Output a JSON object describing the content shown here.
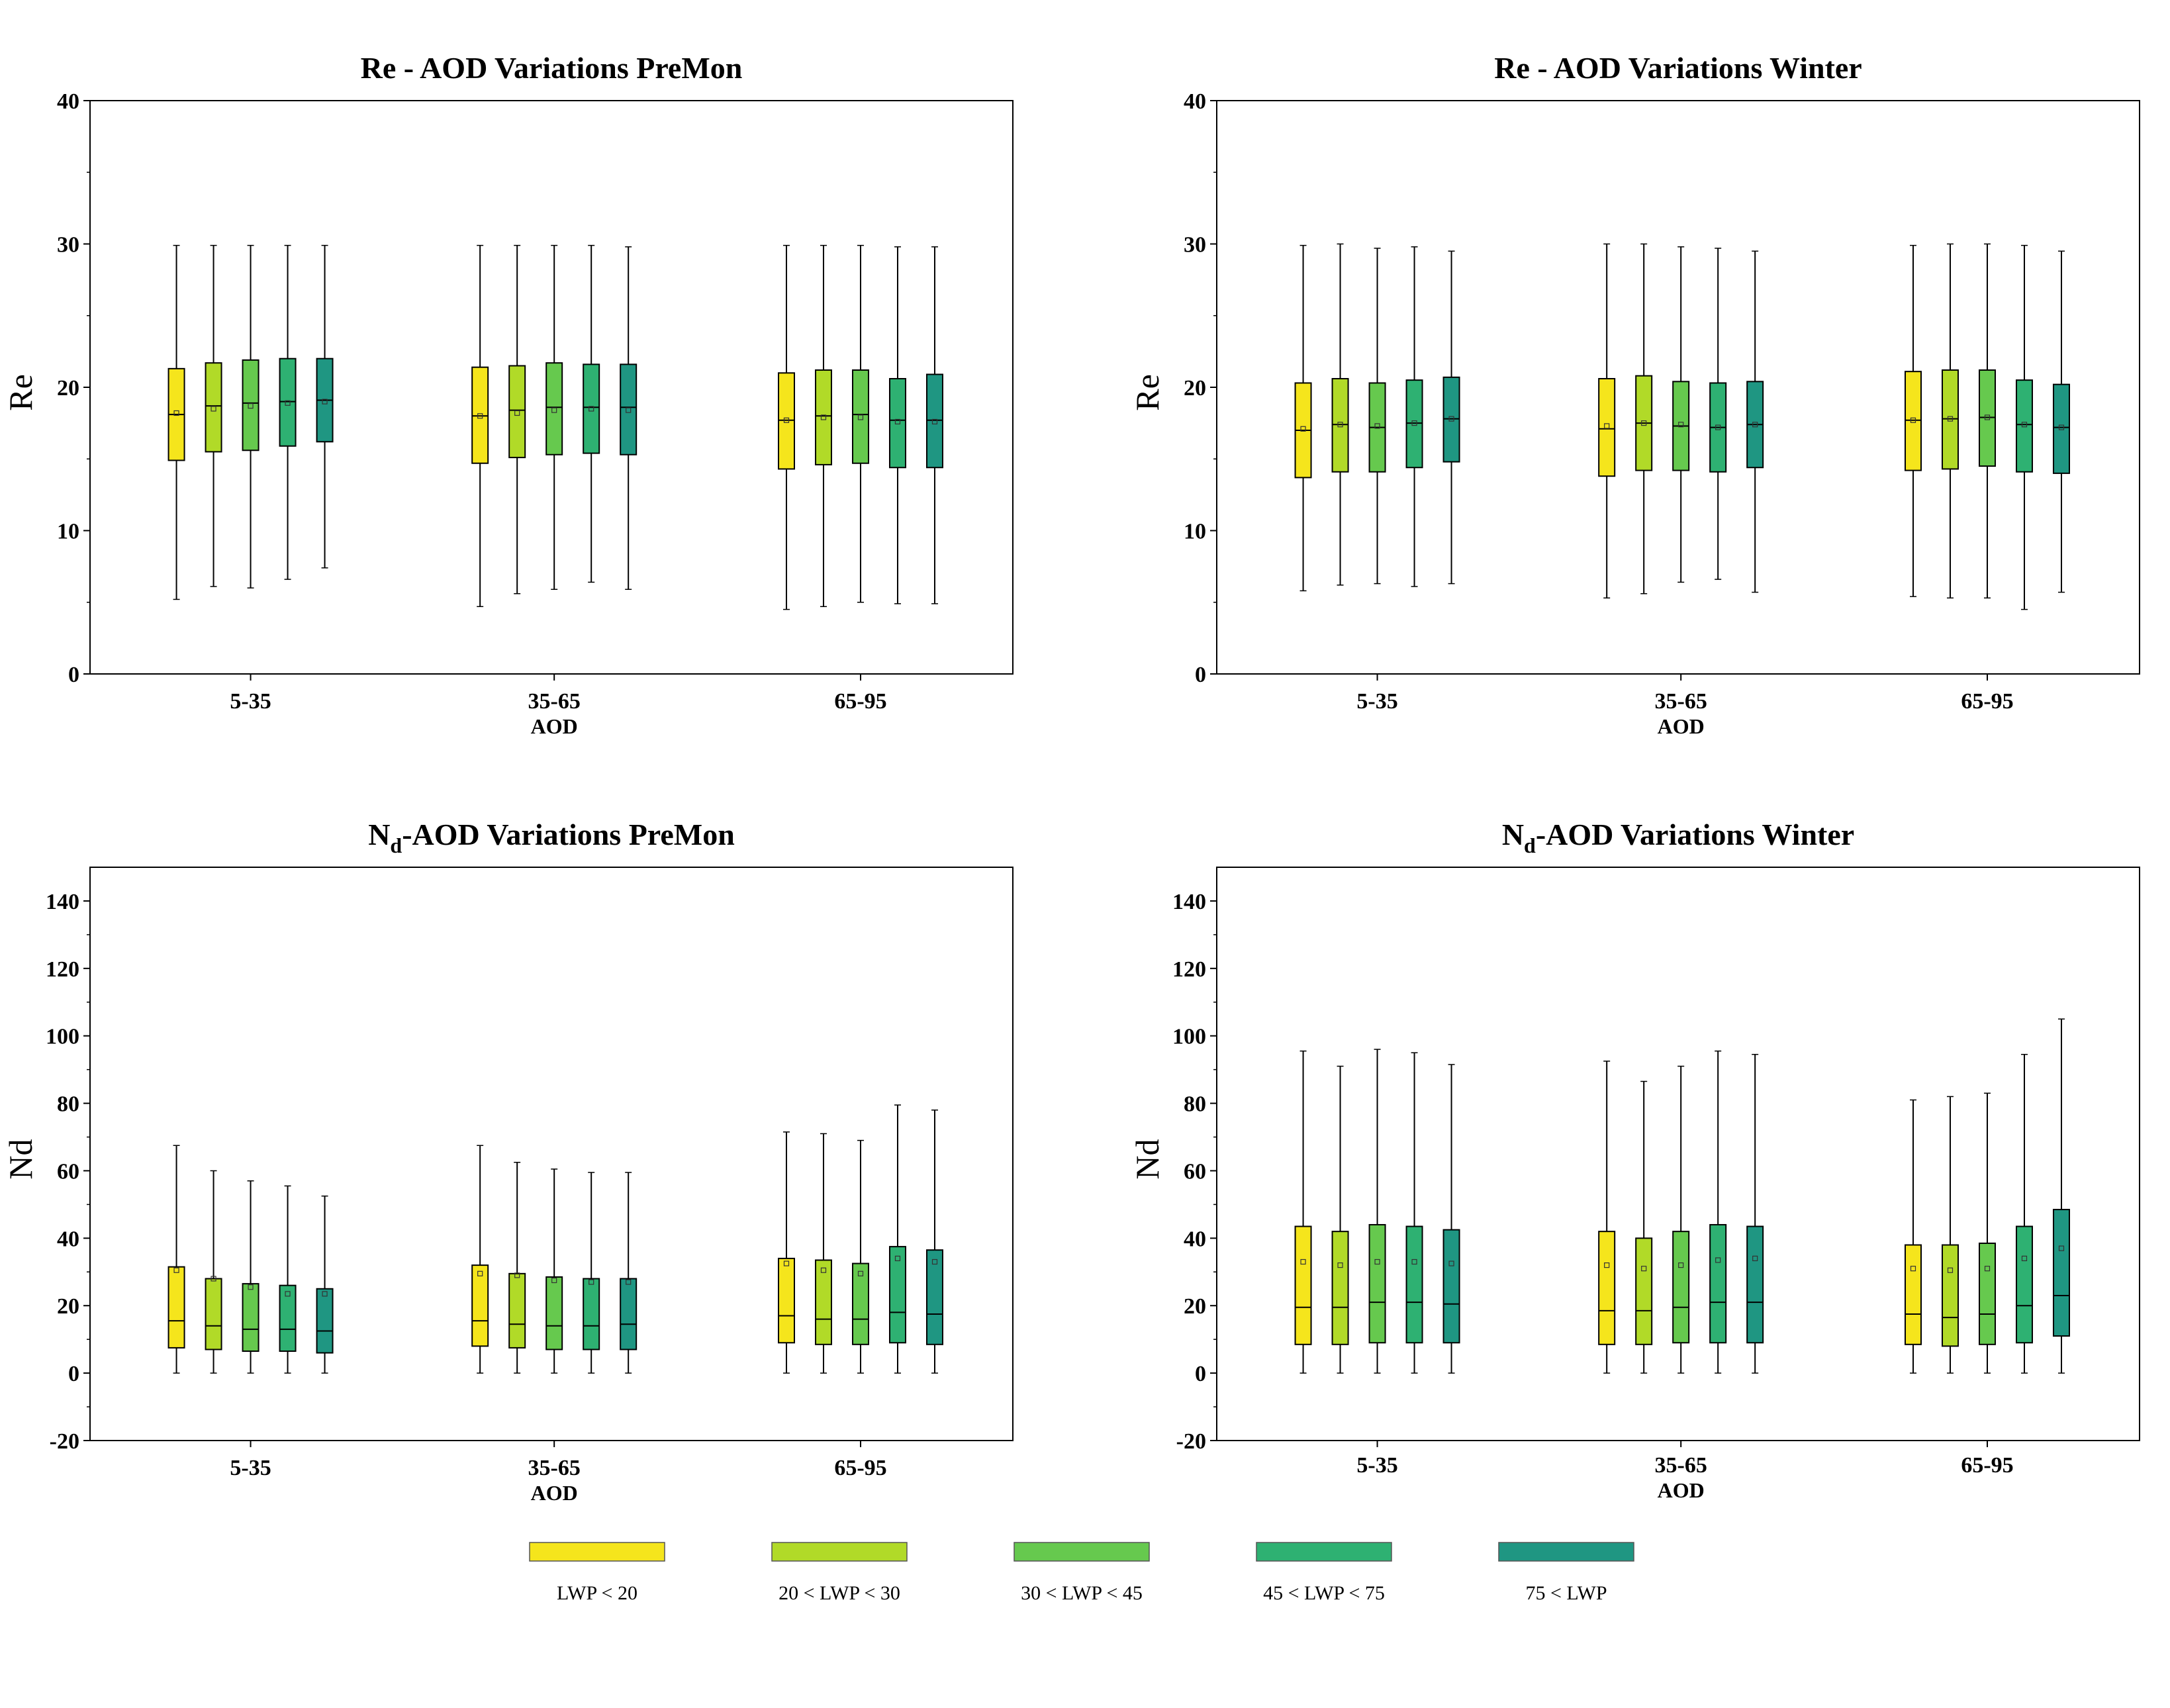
{
  "legend": {
    "entries": [
      "LWP < 20",
      "20 < LWP < 30",
      "30 < LWP < 45",
      "45 < LWP < 75",
      "75 < LWP"
    ],
    "colors": [
      "#F5E51C",
      "#B1DA28",
      "#66C94E",
      "#2EB172",
      "#1F9682"
    ]
  },
  "chart_data": [
    {
      "type": "box",
      "title": "Re - AOD Variations PreMon",
      "title_main": "Re - AOD Variations PreMon",
      "title_sub": "",
      "title_rest": "",
      "ylabel": "Re",
      "xlabel": "AOD",
      "ylim": [
        0,
        40
      ],
      "yticks": [
        "0",
        "10",
        "20",
        "30",
        "40"
      ],
      "categories": [
        "5-35",
        "35-65",
        "65-95"
      ],
      "series": [
        {
          "name": "LWP < 20",
          "boxes": [
            {
              "whislo": 5.2,
              "q1": 14.9,
              "med": 18.1,
              "q3": 21.3,
              "whishi": 29.9,
              "mean": 18.2
            },
            {
              "whislo": 4.7,
              "q1": 14.7,
              "med": 18.0,
              "q3": 21.4,
              "whishi": 29.9,
              "mean": 18.0
            },
            {
              "whislo": 4.5,
              "q1": 14.3,
              "med": 17.7,
              "q3": 21.0,
              "whishi": 29.9,
              "mean": 17.7
            }
          ]
        },
        {
          "name": "20 < LWP < 30",
          "boxes": [
            {
              "whislo": 6.1,
              "q1": 15.5,
              "med": 18.7,
              "q3": 21.7,
              "whishi": 29.9,
              "mean": 18.5
            },
            {
              "whislo": 5.6,
              "q1": 15.1,
              "med": 18.4,
              "q3": 21.5,
              "whishi": 29.9,
              "mean": 18.2
            },
            {
              "whislo": 4.7,
              "q1": 14.6,
              "med": 18.0,
              "q3": 21.2,
              "whishi": 29.9,
              "mean": 17.9
            }
          ]
        },
        {
          "name": "30 < LWP < 45",
          "boxes": [
            {
              "whislo": 6.0,
              "q1": 15.6,
              "med": 18.9,
              "q3": 21.9,
              "whishi": 29.9,
              "mean": 18.7
            },
            {
              "whislo": 5.9,
              "q1": 15.3,
              "med": 18.6,
              "q3": 21.7,
              "whishi": 29.9,
              "mean": 18.4
            },
            {
              "whislo": 5.0,
              "q1": 14.7,
              "med": 18.1,
              "q3": 21.2,
              "whishi": 29.9,
              "mean": 17.9
            }
          ]
        },
        {
          "name": "45 < LWP < 75",
          "boxes": [
            {
              "whislo": 6.6,
              "q1": 15.9,
              "med": 19.0,
              "q3": 22.0,
              "whishi": 29.9,
              "mean": 18.9
            },
            {
              "whislo": 6.4,
              "q1": 15.4,
              "med": 18.6,
              "q3": 21.6,
              "whishi": 29.9,
              "mean": 18.5
            },
            {
              "whislo": 4.9,
              "q1": 14.4,
              "med": 17.7,
              "q3": 20.6,
              "whishi": 29.8,
              "mean": 17.6
            }
          ]
        },
        {
          "name": "75 < LWP",
          "boxes": [
            {
              "whislo": 7.4,
              "q1": 16.2,
              "med": 19.1,
              "q3": 22.0,
              "whishi": 29.9,
              "mean": 19.0
            },
            {
              "whislo": 5.9,
              "q1": 15.3,
              "med": 18.6,
              "q3": 21.6,
              "whishi": 29.8,
              "mean": 18.4
            },
            {
              "whislo": 4.9,
              "q1": 14.4,
              "med": 17.7,
              "q3": 20.9,
              "whishi": 29.8,
              "mean": 17.6
            }
          ]
        }
      ]
    },
    {
      "type": "box",
      "title": "Re - AOD Variations Winter",
      "title_main": "Re - AOD Variations Winter",
      "title_sub": "",
      "title_rest": "",
      "ylabel": "Re",
      "xlabel": "AOD",
      "ylim": [
        0,
        40
      ],
      "yticks": [
        "0",
        "10",
        "20",
        "30",
        "40"
      ],
      "categories": [
        "5-35",
        "35-65",
        "65-95"
      ],
      "series": [
        {
          "name": "LWP < 20",
          "boxes": [
            {
              "whislo": 5.8,
              "q1": 13.7,
              "med": 17.0,
              "q3": 20.3,
              "whishi": 29.9,
              "mean": 17.1
            },
            {
              "whislo": 5.3,
              "q1": 13.8,
              "med": 17.1,
              "q3": 20.6,
              "whishi": 30.0,
              "mean": 17.3
            },
            {
              "whislo": 5.4,
              "q1": 14.2,
              "med": 17.7,
              "q3": 21.1,
              "whishi": 29.9,
              "mean": 17.7
            }
          ]
        },
        {
          "name": "20 < LWP < 30",
          "boxes": [
            {
              "whislo": 6.2,
              "q1": 14.1,
              "med": 17.4,
              "q3": 20.6,
              "whishi": 30.0,
              "mean": 17.4
            },
            {
              "whislo": 5.6,
              "q1": 14.2,
              "med": 17.5,
              "q3": 20.8,
              "whishi": 30.0,
              "mean": 17.5
            },
            {
              "whislo": 5.3,
              "q1": 14.3,
              "med": 17.8,
              "q3": 21.2,
              "whishi": 30.0,
              "mean": 17.8
            }
          ]
        },
        {
          "name": "30 < LWP < 45",
          "boxes": [
            {
              "whislo": 6.3,
              "q1": 14.1,
              "med": 17.2,
              "q3": 20.3,
              "whishi": 29.7,
              "mean": 17.3
            },
            {
              "whislo": 6.4,
              "q1": 14.2,
              "med": 17.3,
              "q3": 20.4,
              "whishi": 29.8,
              "mean": 17.4
            },
            {
              "whislo": 5.3,
              "q1": 14.5,
              "med": 17.9,
              "q3": 21.2,
              "whishi": 30.0,
              "mean": 17.9
            }
          ]
        },
        {
          "name": "45 < LWP < 75",
          "boxes": [
            {
              "whislo": 6.1,
              "q1": 14.4,
              "med": 17.5,
              "q3": 20.5,
              "whishi": 29.8,
              "mean": 17.5
            },
            {
              "whislo": 6.6,
              "q1": 14.1,
              "med": 17.2,
              "q3": 20.3,
              "whishi": 29.7,
              "mean": 17.2
            },
            {
              "whislo": 4.5,
              "q1": 14.1,
              "med": 17.4,
              "q3": 20.5,
              "whishi": 29.9,
              "mean": 17.4
            }
          ]
        },
        {
          "name": "75 < LWP",
          "boxes": [
            {
              "whislo": 6.3,
              "q1": 14.8,
              "med": 17.8,
              "q3": 20.7,
              "whishi": 29.5,
              "mean": 17.8
            },
            {
              "whislo": 5.7,
              "q1": 14.4,
              "med": 17.4,
              "q3": 20.4,
              "whishi": 29.5,
              "mean": 17.4
            },
            {
              "whislo": 5.7,
              "q1": 14.0,
              "med": 17.2,
              "q3": 20.2,
              "whishi": 29.5,
              "mean": 17.2
            }
          ]
        }
      ]
    },
    {
      "type": "box",
      "title": "Nd-AOD Variations PreMon",
      "title_main": "N",
      "title_sub": "d",
      "title_rest": "-AOD Variations PreMon",
      "ylabel": "Nd",
      "xlabel": "AOD",
      "ylim": [
        -20,
        150
      ],
      "yticks": [
        "-20",
        "0",
        "20",
        "40",
        "60",
        "80",
        "100",
        "120",
        "140"
      ],
      "categories": [
        "5-35",
        "35-65",
        "65-95"
      ],
      "series": [
        {
          "name": "LWP < 20",
          "boxes": [
            {
              "whislo": 0,
              "q1": 7.5,
              "med": 15.5,
              "q3": 31.5,
              "whishi": 67.5,
              "mean": 30.5
            },
            {
              "whislo": 0,
              "q1": 8,
              "med": 15.5,
              "q3": 32,
              "whishi": 67.5,
              "mean": 29.5
            },
            {
              "whislo": 0,
              "q1": 9,
              "med": 17,
              "q3": 34,
              "whishi": 71.5,
              "mean": 32.5
            }
          ]
        },
        {
          "name": "20 < LWP < 30",
          "boxes": [
            {
              "whislo": 0,
              "q1": 7,
              "med": 14,
              "q3": 28,
              "whishi": 60,
              "mean": 28
            },
            {
              "whislo": 0,
              "q1": 7.5,
              "med": 14.5,
              "q3": 29.5,
              "whishi": 62.5,
              "mean": 29
            },
            {
              "whislo": 0,
              "q1": 8.5,
              "med": 16,
              "q3": 33.5,
              "whishi": 71,
              "mean": 30.5
            }
          ]
        },
        {
          "name": "30 < LWP < 45",
          "boxes": [
            {
              "whislo": 0,
              "q1": 6.5,
              "med": 13,
              "q3": 26.5,
              "whishi": 57,
              "mean": 25.5
            },
            {
              "whislo": 0,
              "q1": 7,
              "med": 14,
              "q3": 28.5,
              "whishi": 60.5,
              "mean": 27.5
            },
            {
              "whislo": 0,
              "q1": 8.5,
              "med": 16,
              "q3": 32.5,
              "whishi": 69,
              "mean": 29.5
            }
          ]
        },
        {
          "name": "45 < LWP < 75",
          "boxes": [
            {
              "whislo": 0,
              "q1": 6.5,
              "med": 13,
              "q3": 26,
              "whishi": 55.5,
              "mean": 23.5
            },
            {
              "whislo": 0,
              "q1": 7,
              "med": 14,
              "q3": 28,
              "whishi": 59.5,
              "mean": 27
            },
            {
              "whislo": 0,
              "q1": 9,
              "med": 18,
              "q3": 37.5,
              "whishi": 79.5,
              "mean": 34
            }
          ]
        },
        {
          "name": "75 < LWP",
          "boxes": [
            {
              "whislo": 0,
              "q1": 6,
              "med": 12.5,
              "q3": 25,
              "whishi": 52.5,
              "mean": 23.5
            },
            {
              "whislo": 0,
              "q1": 7,
              "med": 14.5,
              "q3": 28,
              "whishi": 59.5,
              "mean": 27
            },
            {
              "whislo": 0,
              "q1": 8.5,
              "med": 17.5,
              "q3": 36.5,
              "whishi": 78,
              "mean": 33
            }
          ]
        }
      ]
    },
    {
      "type": "box",
      "title": "Nd-AOD Variations Winter",
      "title_main": "N",
      "title_sub": "d",
      "title_rest": "-AOD Variations Winter",
      "ylabel": "Nd",
      "xlabel": "AOD",
      "ylim": [
        -20,
        150
      ],
      "yticks": [
        "-20",
        "0",
        "20",
        "40",
        "60",
        "80",
        "100",
        "120",
        "140"
      ],
      "categories": [
        "5-35",
        "35-65",
        "65-95"
      ],
      "series": [
        {
          "name": "LWP < 20",
          "boxes": [
            {
              "whislo": 0,
              "q1": 8.5,
              "med": 19.5,
              "q3": 43.5,
              "whishi": 95.5,
              "mean": 33
            },
            {
              "whislo": 0,
              "q1": 8.5,
              "med": 18.5,
              "q3": 42,
              "whishi": 92.5,
              "mean": 32
            },
            {
              "whislo": 0,
              "q1": 8.5,
              "med": 17.5,
              "q3": 38,
              "whishi": 81,
              "mean": 31
            }
          ]
        },
        {
          "name": "20 < LWP < 30",
          "boxes": [
            {
              "whislo": 0,
              "q1": 8.5,
              "med": 19.5,
              "q3": 42,
              "whishi": 91,
              "mean": 32
            },
            {
              "whislo": 0,
              "q1": 8.5,
              "med": 18.5,
              "q3": 40,
              "whishi": 86.5,
              "mean": 31
            },
            {
              "whislo": 0,
              "q1": 8,
              "med": 16.5,
              "q3": 38,
              "whishi": 82,
              "mean": 30.5
            }
          ]
        },
        {
          "name": "30 < LWP < 45",
          "boxes": [
            {
              "whislo": 0,
              "q1": 9,
              "med": 21,
              "q3": 44,
              "whishi": 96,
              "mean": 33
            },
            {
              "whislo": 0,
              "q1": 9,
              "med": 19.5,
              "q3": 42,
              "whishi": 91,
              "mean": 32
            },
            {
              "whislo": 0,
              "q1": 8.5,
              "med": 17.5,
              "q3": 38.5,
              "whishi": 83,
              "mean": 31
            }
          ]
        },
        {
          "name": "45 < LWP < 75",
          "boxes": [
            {
              "whislo": 0,
              "q1": 9,
              "med": 21,
              "q3": 43.5,
              "whishi": 95,
              "mean": 33
            },
            {
              "whislo": 0,
              "q1": 9,
              "med": 21,
              "q3": 44,
              "whishi": 95.5,
              "mean": 33.5
            },
            {
              "whislo": 0,
              "q1": 9,
              "med": 20,
              "q3": 43.5,
              "whishi": 94.5,
              "mean": 34
            }
          ]
        },
        {
          "name": "75 < LWP",
          "boxes": [
            {
              "whislo": 0,
              "q1": 9,
              "med": 20.5,
              "q3": 42.5,
              "whishi": 91.5,
              "mean": 32.5
            },
            {
              "whislo": 0,
              "q1": 9,
              "med": 21,
              "q3": 43.5,
              "whishi": 94.5,
              "mean": 34
            },
            {
              "whislo": 0,
              "q1": 11,
              "med": 23,
              "q3": 48.5,
              "whishi": 105,
              "mean": 37
            }
          ]
        }
      ]
    }
  ]
}
